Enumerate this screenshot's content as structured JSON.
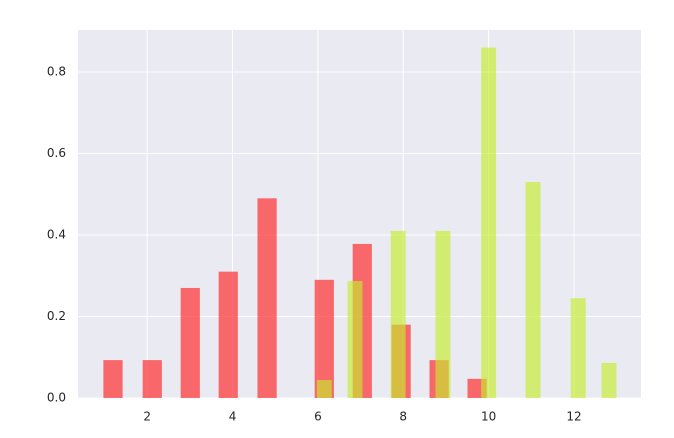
{
  "chart_data": {
    "type": "bar",
    "series": [
      {
        "color": "#ff2020",
        "x": [
          1.2,
          2.12,
          3.01,
          3.9,
          4.81,
          6.15,
          7.04,
          7.95,
          8.84,
          9.73
        ],
        "values": [
          0.093,
          0.093,
          0.27,
          0.31,
          0.49,
          0.29,
          0.378,
          0.18,
          0.093,
          0.047
        ]
      },
      {
        "color": "#c4ec2c",
        "x": [
          6.15,
          6.87,
          7.88,
          8.93,
          10.0,
          11.04,
          12.1,
          12.82
        ],
        "values": [
          0.044,
          0.287,
          0.41,
          0.41,
          0.86,
          0.53,
          0.245,
          0.086
        ]
      }
    ],
    "xlim": [
      0.38,
      13.57
    ],
    "ylim": [
      0,
      0.903
    ],
    "xticks": [
      2,
      4,
      6,
      8,
      10,
      12
    ],
    "yticks": [
      {
        "value": 0,
        "label": "0.0"
      },
      0.2,
      0.4,
      0.6,
      0.8
    ],
    "grid": true
  }
}
